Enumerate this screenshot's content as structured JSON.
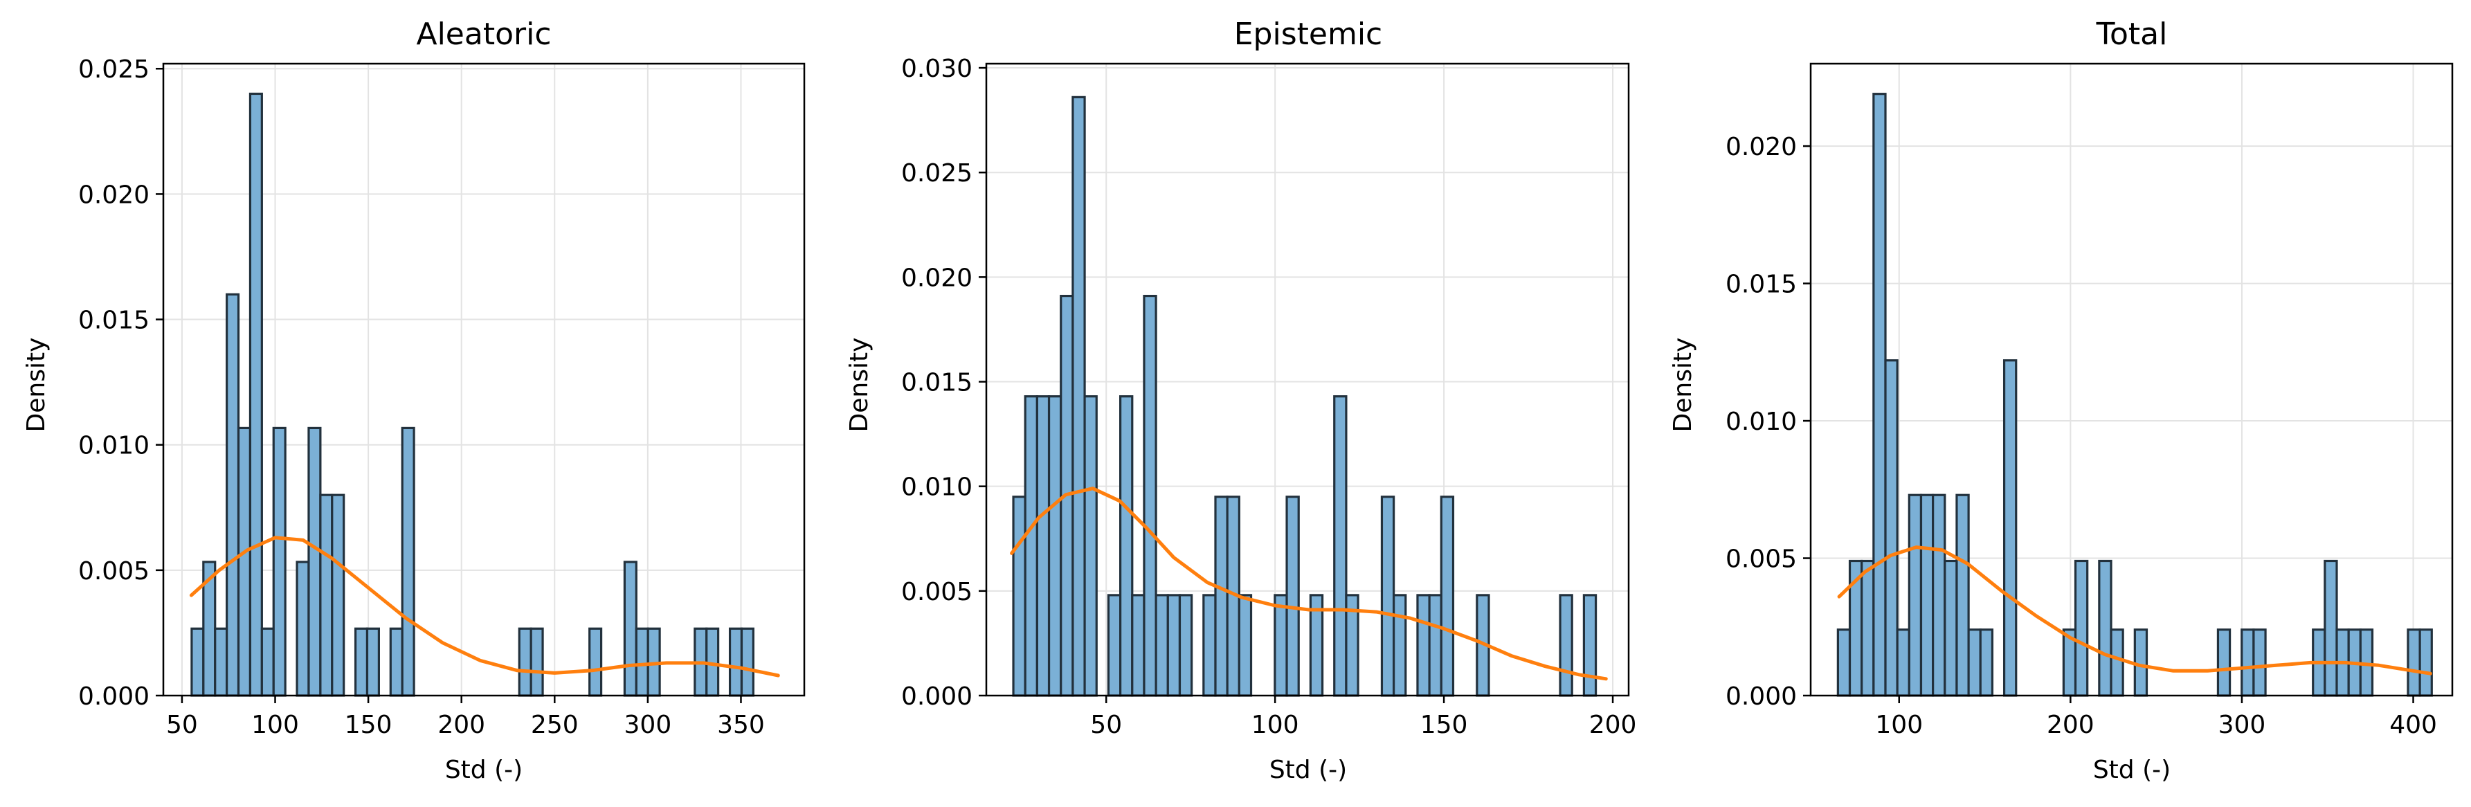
{
  "chart_data": [
    {
      "type": "bar",
      "title": "Aleatoric",
      "xlabel": "Std (-)",
      "ylabel": "Density",
      "xlim": [
        40,
        384
      ],
      "ylim": [
        0,
        0.0252
      ],
      "xticks": [
        50,
        100,
        150,
        200,
        250,
        300,
        350
      ],
      "xtick_labels": [
        "50",
        "100",
        "150",
        "200",
        "250",
        "300",
        "350"
      ],
      "yticks": [
        0,
        0.005,
        0.01,
        0.015,
        0.02,
        0.025
      ],
      "ytick_labels": [
        "0.000",
        "0.005",
        "0.010",
        "0.015",
        "0.020",
        "0.025"
      ],
      "grid": true,
      "hist": {
        "bin_start": 55.2,
        "bin_width": 6.28,
        "values": [
          0.00267,
          0.00533,
          0.00267,
          0.016,
          0.01067,
          0.024,
          0.00267,
          0.01067,
          0,
          0.00533,
          0.01067,
          0.008,
          0.008,
          0,
          0.00267,
          0.00267,
          0,
          0.00267,
          0.01067,
          0,
          0,
          0,
          0,
          0,
          0,
          0,
          0,
          0,
          0.00267,
          0.00267,
          0,
          0,
          0,
          0,
          0.00267,
          0,
          0,
          0.00533,
          0.00267,
          0.00267,
          0,
          0,
          0,
          0.00267,
          0.00267,
          0,
          0.00267,
          0.00267,
          0,
          0
        ]
      },
      "kde": {
        "x": [
          55,
          70,
          85,
          100,
          115,
          130,
          150,
          170,
          190,
          210,
          230,
          250,
          270,
          290,
          310,
          330,
          350,
          370
        ],
        "y": [
          0.004,
          0.005,
          0.0058,
          0.0063,
          0.0062,
          0.0055,
          0.0043,
          0.0031,
          0.0021,
          0.0014,
          0.001,
          0.0009,
          0.001,
          0.0012,
          0.0013,
          0.0013,
          0.0011,
          0.0008
        ]
      }
    },
    {
      "type": "bar",
      "title": "Epistemic",
      "xlabel": "Std (-)",
      "ylabel": "Density",
      "xlim": [
        14.5,
        204.7
      ],
      "ylim": [
        0,
        0.0302
      ],
      "xticks": [
        50,
        100,
        150,
        200
      ],
      "xtick_labels": [
        "50",
        "100",
        "150",
        "200"
      ],
      "yticks": [
        0,
        0.005,
        0.01,
        0.015,
        0.02,
        0.025,
        0.03
      ],
      "ytick_labels": [
        "0.000",
        "0.005",
        "0.010",
        "0.015",
        "0.020",
        "0.025",
        "0.030"
      ],
      "grid": true,
      "hist": {
        "bin_start": 22.5,
        "bin_width": 3.52,
        "values": [
          0.0095,
          0.0143,
          0.0143,
          0.0143,
          0.0191,
          0.0286,
          0.0143,
          0,
          0.0048,
          0.0143,
          0.0048,
          0.0191,
          0.0048,
          0.0048,
          0.0048,
          0,
          0.0048,
          0.0095,
          0.0095,
          0.0048,
          0,
          0,
          0.0048,
          0.0095,
          0,
          0.0048,
          0,
          0.0143,
          0.0048,
          0,
          0,
          0.0095,
          0.0048,
          0,
          0.0048,
          0.0048,
          0.0095,
          0,
          0,
          0.0048,
          0,
          0,
          0,
          0,
          0,
          0,
          0.0048,
          0,
          0.0048,
          0
        ]
      },
      "kde": {
        "x": [
          22,
          30,
          38,
          46,
          54,
          62,
          70,
          80,
          90,
          100,
          110,
          120,
          130,
          140,
          150,
          160,
          170,
          180,
          190,
          198
        ],
        "y": [
          0.0068,
          0.0085,
          0.0096,
          0.0099,
          0.0093,
          0.008,
          0.0066,
          0.0054,
          0.0047,
          0.0043,
          0.0041,
          0.0041,
          0.004,
          0.0037,
          0.0032,
          0.0026,
          0.0019,
          0.0014,
          0.001,
          0.0008
        ]
      }
    },
    {
      "type": "bar",
      "title": "Total",
      "xlabel": "Std (-)",
      "ylabel": "Density",
      "xlim": [
        48.4,
        422.8
      ],
      "ylim": [
        0,
        0.023
      ],
      "xticks": [
        100,
        200,
        300,
        400
      ],
      "xtick_labels": [
        "100",
        "200",
        "300",
        "400"
      ],
      "yticks": [
        0,
        0.005,
        0.01,
        0.015,
        0.02
      ],
      "ytick_labels": [
        "0.000",
        "0.005",
        "0.010",
        "0.015",
        "0.020"
      ],
      "grid": true,
      "hist": {
        "bin_start": 64.3,
        "bin_width": 6.93,
        "values": [
          0.0024,
          0.0049,
          0.0049,
          0.0219,
          0.0122,
          0.0024,
          0.0073,
          0.0073,
          0.0073,
          0.0049,
          0.0073,
          0.0024,
          0.0024,
          0,
          0.0122,
          0,
          0,
          0,
          0,
          0.0024,
          0.0049,
          0,
          0.0049,
          0.0024,
          0,
          0.0024,
          0,
          0,
          0,
          0,
          0,
          0,
          0.0024,
          0,
          0.0024,
          0.0024,
          0,
          0,
          0,
          0,
          0.0024,
          0.0049,
          0.0024,
          0.0024,
          0.0024,
          0,
          0,
          0,
          0.0024,
          0.0024
        ]
      },
      "kde": {
        "x": [
          65,
          80,
          95,
          110,
          125,
          140,
          160,
          180,
          200,
          220,
          240,
          260,
          280,
          300,
          320,
          340,
          360,
          380,
          400,
          410
        ],
        "y": [
          0.0036,
          0.0045,
          0.0051,
          0.0054,
          0.0053,
          0.0048,
          0.0038,
          0.0029,
          0.0021,
          0.0015,
          0.0011,
          0.0009,
          0.0009,
          0.001,
          0.0011,
          0.0012,
          0.0012,
          0.0011,
          0.0009,
          0.0008
        ]
      }
    }
  ],
  "colors": {
    "bar_fill": "#7bb0d6",
    "bar_edge": "#22313d",
    "kde_line": "#ff7f0e",
    "grid": "#e3e3e3",
    "axis": "#000000"
  }
}
